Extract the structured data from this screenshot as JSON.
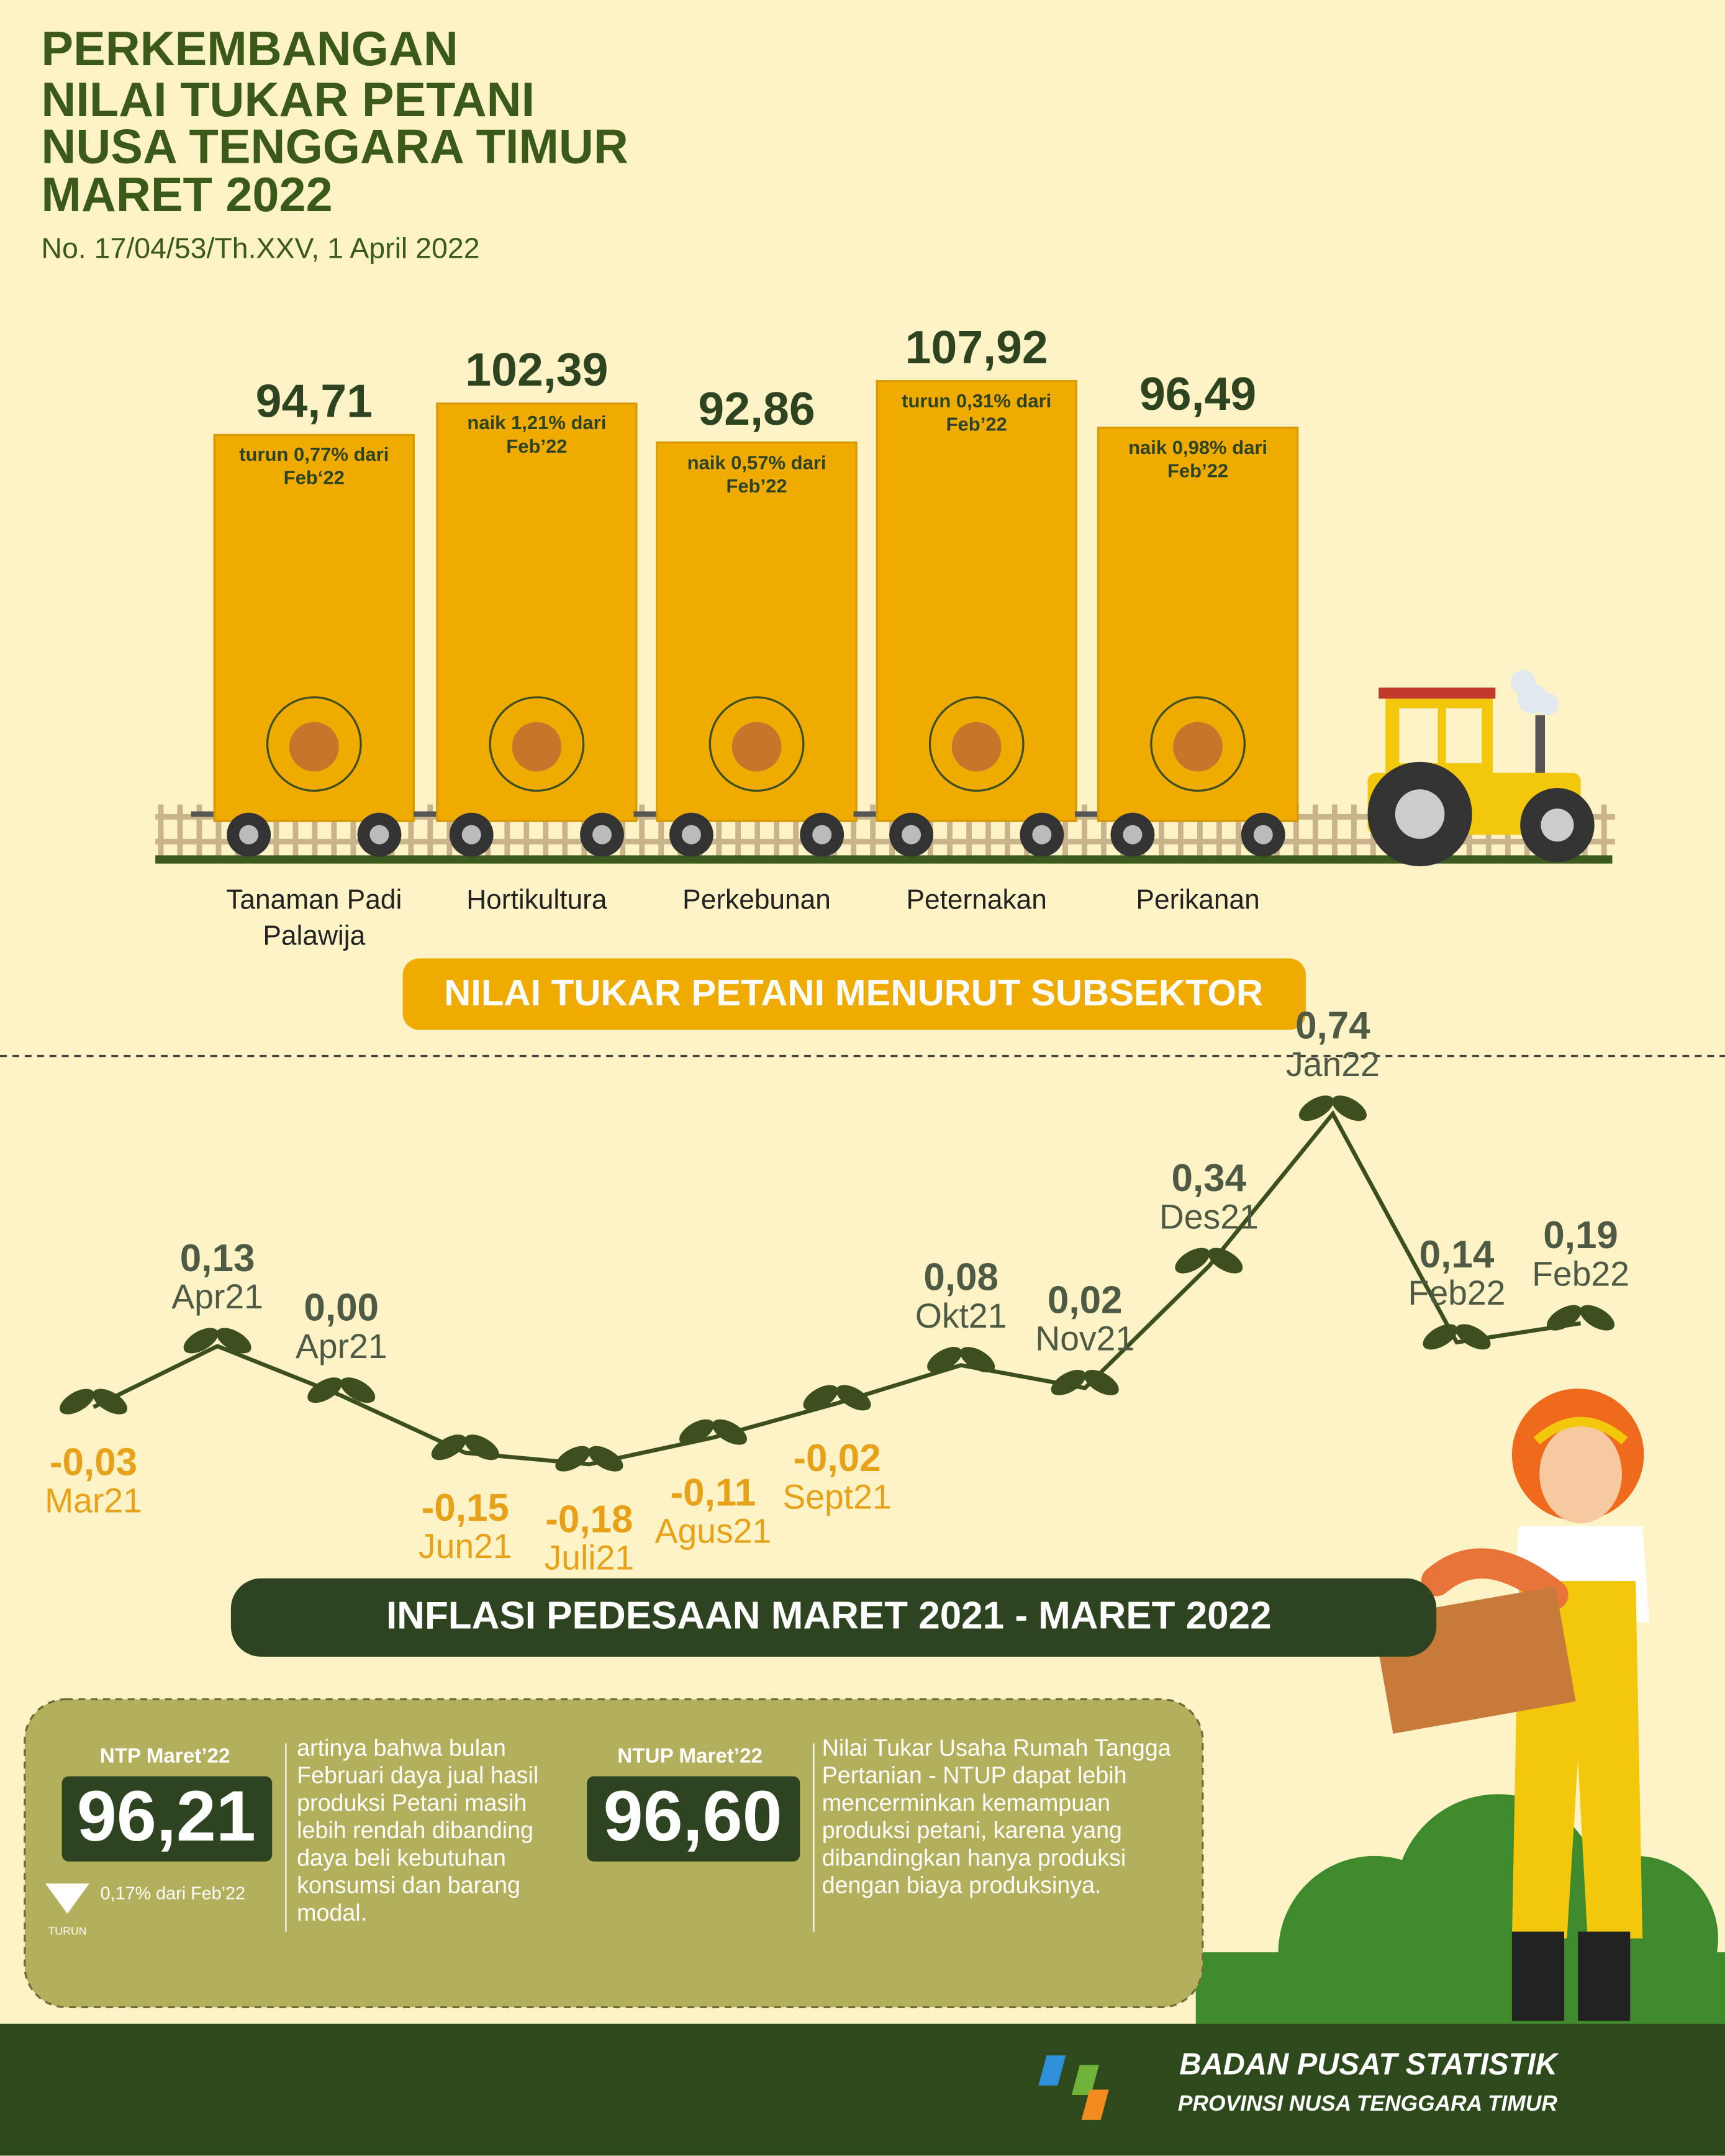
{
  "header": {
    "title_lines": [
      "PERKEMBANGAN",
      "NILAI TUKAR PETANI",
      "NUSA TENGGARA TIMUR",
      "MARET 2022"
    ],
    "subtitle": "No. 17/04/53/Th.XXV, 1 April 2022"
  },
  "chart_data": [
    {
      "type": "bar",
      "title": "NILAI TUKAR PETANI MENURUT SUBSEKTOR",
      "categories": [
        "Tanaman Padi Palawija",
        "Hortikultura",
        "Perkebunan",
        "Peternakan",
        "Perikanan"
      ],
      "values": [
        94.71,
        102.39,
        92.86,
        107.92,
        96.49
      ],
      "value_labels": [
        "94,71",
        "102,39",
        "92,86",
        "107,92",
        "96,49"
      ],
      "annotations": [
        "turun 0,77% dari Feb‘22",
        "naik 1,21% dari Feb’22",
        "naik 0,57% dari Feb’22",
        "turun 0,31% dari Feb’22",
        "naik 0,98% dari Feb’22"
      ],
      "color": "#f0ab00"
    },
    {
      "type": "line",
      "title": "INFLASI PEDESAAN MARET 2021 - MARET 2022",
      "categories": [
        "Mar21",
        "Apr21",
        "Apr21",
        "Jun21",
        "Juli21",
        "Agus21",
        "Sept21",
        "Okt21",
        "Nov21",
        "Des21",
        "Jan22",
        "Feb22",
        "Feb22"
      ],
      "values": [
        -0.03,
        0.13,
        0.0,
        -0.15,
        -0.18,
        -0.11,
        -0.02,
        0.08,
        0.02,
        0.34,
        0.74,
        0.14,
        0.19
      ],
      "value_labels": [
        "-0,03",
        "0,13",
        "0,00",
        "-0,15",
        "-0,18",
        "-0,11",
        "-0,02",
        "0,08",
        "0,02",
        "0,34",
        "0,74",
        "0,14",
        "0,19"
      ],
      "color": "#3d4e1f",
      "negative_color": "#e8a21a",
      "positive_color": "#4f5a45"
    }
  ],
  "info": {
    "ntp": {
      "label": "NTP Maret’22",
      "value": "96,21",
      "change": "0,17% dari Feb’22",
      "direction": "TURUN",
      "text": "artinya bahwa bulan Februari daya jual hasil produksi Petani masih lebih rendah dibanding daya beli kebutuhan konsumsi dan barang modal."
    },
    "ntup": {
      "label": "NTUP Maret’22",
      "value": "96,60",
      "text": "Nilai Tukar Usaha Rumah Tangga Pertanian - NTUP dapat lebih mencerminkan kemampuan produksi petani, karena yang dibandingkan hanya produksi dengan biaya produksinya."
    }
  },
  "footer": {
    "org": "BADAN PUSAT STATISTIK",
    "region": "PROVINSI NUSA TENGGARA TIMUR"
  }
}
